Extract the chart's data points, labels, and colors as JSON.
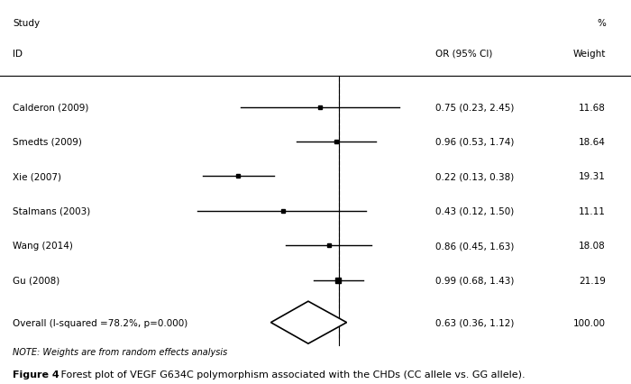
{
  "studies": [
    {
      "name": "Calderon (2009)",
      "or": 0.75,
      "ci_low": 0.23,
      "ci_high": 2.45,
      "weight": 11.68
    },
    {
      "name": "Smedts (2009)",
      "or": 0.96,
      "ci_low": 0.53,
      "ci_high": 1.74,
      "weight": 18.64
    },
    {
      "name": "Xie (2007)",
      "or": 0.22,
      "ci_low": 0.13,
      "ci_high": 0.38,
      "weight": 19.31
    },
    {
      "name": "Stalmans (2003)",
      "or": 0.43,
      "ci_low": 0.12,
      "ci_high": 1.5,
      "weight": 11.11
    },
    {
      "name": "Wang (2014)",
      "or": 0.86,
      "ci_low": 0.45,
      "ci_high": 1.63,
      "weight": 18.08
    },
    {
      "name": "Gu (2008)",
      "or": 0.99,
      "ci_low": 0.68,
      "ci_high": 1.43,
      "weight": 21.19
    }
  ],
  "overall": {
    "name": "Overall (I-squared =78.2%, p=0.000)",
    "or": 0.63,
    "ci_low": 0.36,
    "ci_high": 1.12,
    "weight": 100.0
  },
  "null_value": 1.0,
  "header_study": "Study",
  "header_percent": "%",
  "header_id": "ID",
  "header_or": "OR (95% CI)",
  "header_weight": "Weight",
  "note": "NOTE: Weights are from random effects analysis",
  "caption_bold": "Figure 4",
  "caption_rest": " Forest plot of VEGF G634C polymorphism associated with the CHDs (CC allele vs. GG allele).",
  "line_color": "#000000",
  "dashed_color": "#aaaaaa",
  "diamond_color": "#000000",
  "marker_color": "#000000",
  "text_color": "#000000",
  "bg_color": "#ffffff",
  "fontsize": 7.5,
  "caption_fontsize": 8.0
}
